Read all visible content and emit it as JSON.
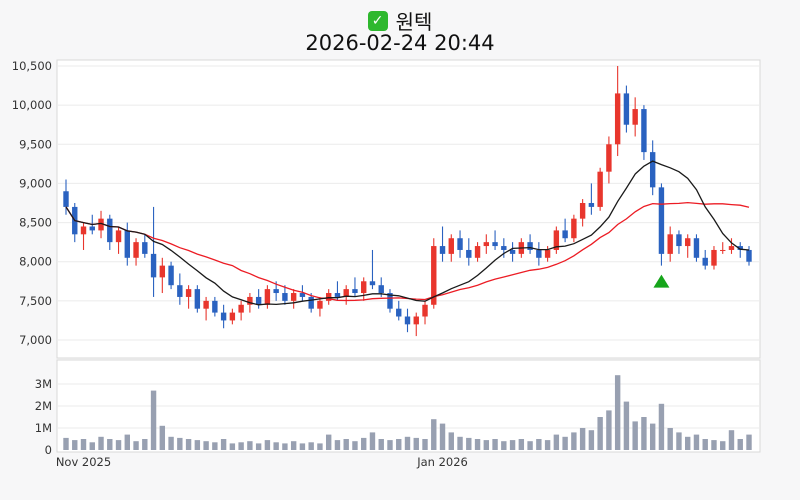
{
  "header": {
    "title": "원텍",
    "datetime": "2026-02-24 20:44"
  },
  "colors": {
    "background": "#f7f7f8",
    "panel_bg": "#ffffff",
    "panel_border": "#d8d8d8",
    "grid": "#ebebeb",
    "axis_text": "#333333",
    "up": "#e8362d",
    "down": "#2a62c0",
    "volume": "#98a0b1",
    "ma_fast": "#1a1a1a",
    "ma_slow": "#ec1c24",
    "marker": "#16a51b",
    "check_icon": "#2eb82e"
  },
  "chart_data": {
    "type": "candlestick",
    "title": "원텍",
    "subtitle": "2026-02-24 20:44",
    "price_axis": {
      "min": 7000,
      "max": 10500,
      "tick_values": [
        10500,
        10000,
        9500,
        9000,
        8500,
        8000,
        7500,
        7000
      ]
    },
    "volume_axis": {
      "unit": "millions",
      "ticks": [
        {
          "value": 3,
          "label": "3M"
        },
        {
          "value": 2,
          "label": "2M"
        },
        {
          "value": 1,
          "label": "1M"
        },
        {
          "value": 0,
          "label": "0"
        }
      ]
    },
    "x_ticks": [
      {
        "label": "Nov 2025",
        "index": 2
      },
      {
        "label": "Jan 2026",
        "index": 43
      }
    ],
    "moving_averages": [
      {
        "name": "fast-black",
        "window": 10,
        "color_key": "ma_fast"
      },
      {
        "name": "slow-red",
        "window": 20,
        "color_key": "ma_slow"
      }
    ],
    "marker": {
      "index": 68,
      "shape": "triangle-up",
      "color_key": "marker"
    },
    "candles_format": [
      "open",
      "high",
      "low",
      "close",
      "volume_millions"
    ],
    "candles": [
      [
        8900,
        9050,
        8600,
        8700,
        0.55
      ],
      [
        8700,
        8750,
        8250,
        8350,
        0.45
      ],
      [
        8350,
        8500,
        8150,
        8450,
        0.5
      ],
      [
        8450,
        8600,
        8350,
        8400,
        0.35
      ],
      [
        8400,
        8650,
        8300,
        8550,
        0.6
      ],
      [
        8550,
        8600,
        8150,
        8250,
        0.5
      ],
      [
        8250,
        8450,
        8100,
        8400,
        0.45
      ],
      [
        8400,
        8500,
        7950,
        8050,
        0.7
      ],
      [
        8050,
        8300,
        7950,
        8250,
        0.4
      ],
      [
        8250,
        8350,
        8050,
        8100,
        0.5
      ],
      [
        8100,
        8700,
        7550,
        7800,
        2.7
      ],
      [
        7800,
        8050,
        7600,
        7950,
        1.1
      ],
      [
        7950,
        8000,
        7650,
        7700,
        0.6
      ],
      [
        7700,
        7850,
        7450,
        7550,
        0.55
      ],
      [
        7550,
        7700,
        7400,
        7650,
        0.5
      ],
      [
        7650,
        7700,
        7350,
        7400,
        0.45
      ],
      [
        7400,
        7550,
        7250,
        7500,
        0.4
      ],
      [
        7500,
        7550,
        7300,
        7350,
        0.35
      ],
      [
        7350,
        7450,
        7150,
        7250,
        0.5
      ],
      [
        7250,
        7400,
        7200,
        7350,
        0.3
      ],
      [
        7350,
        7500,
        7250,
        7450,
        0.35
      ],
      [
        7450,
        7600,
        7350,
        7550,
        0.4
      ],
      [
        7550,
        7650,
        7400,
        7450,
        0.3
      ],
      [
        7450,
        7700,
        7400,
        7650,
        0.45
      ],
      [
        7650,
        7750,
        7500,
        7600,
        0.35
      ],
      [
        7600,
        7700,
        7450,
        7500,
        0.3
      ],
      [
        7500,
        7650,
        7400,
        7600,
        0.4
      ],
      [
        7600,
        7700,
        7500,
        7550,
        0.3
      ],
      [
        7550,
        7600,
        7350,
        7400,
        0.35
      ],
      [
        7400,
        7550,
        7300,
        7500,
        0.3
      ],
      [
        7500,
        7650,
        7450,
        7600,
        0.7
      ],
      [
        7600,
        7750,
        7500,
        7550,
        0.45
      ],
      [
        7550,
        7700,
        7450,
        7650,
        0.5
      ],
      [
        7650,
        7800,
        7550,
        7600,
        0.4
      ],
      [
        7600,
        7800,
        7500,
        7750,
        0.55
      ],
      [
        7750,
        8150,
        7650,
        7700,
        0.8
      ],
      [
        7700,
        7800,
        7550,
        7600,
        0.5
      ],
      [
        7600,
        7650,
        7350,
        7400,
        0.45
      ],
      [
        7400,
        7500,
        7250,
        7300,
        0.5
      ],
      [
        7300,
        7400,
        7100,
        7200,
        0.6
      ],
      [
        7200,
        7350,
        7050,
        7300,
        0.55
      ],
      [
        7300,
        7500,
        7200,
        7450,
        0.5
      ],
      [
        7450,
        8300,
        7400,
        8200,
        1.4
      ],
      [
        8200,
        8450,
        8000,
        8100,
        1.2
      ],
      [
        8100,
        8350,
        8000,
        8300,
        0.8
      ],
      [
        8300,
        8400,
        8050,
        8150,
        0.6
      ],
      [
        8150,
        8300,
        7950,
        8050,
        0.55
      ],
      [
        8050,
        8250,
        8000,
        8200,
        0.5
      ],
      [
        8200,
        8350,
        8100,
        8250,
        0.45
      ],
      [
        8250,
        8400,
        8150,
        8200,
        0.5
      ],
      [
        8200,
        8300,
        8050,
        8150,
        0.4
      ],
      [
        8150,
        8250,
        8000,
        8100,
        0.45
      ],
      [
        8100,
        8300,
        8050,
        8250,
        0.5
      ],
      [
        8250,
        8350,
        8100,
        8150,
        0.4
      ],
      [
        8150,
        8250,
        7950,
        8050,
        0.5
      ],
      [
        8050,
        8200,
        8000,
        8150,
        0.45
      ],
      [
        8150,
        8450,
        8100,
        8400,
        0.7
      ],
      [
        8400,
        8550,
        8250,
        8300,
        0.6
      ],
      [
        8300,
        8600,
        8250,
        8550,
        0.8
      ],
      [
        8550,
        8800,
        8450,
        8750,
        1.0
      ],
      [
        8750,
        9000,
        8600,
        8700,
        0.9
      ],
      [
        8700,
        9200,
        8650,
        9150,
        1.5
      ],
      [
        9150,
        9600,
        9000,
        9500,
        1.8
      ],
      [
        9500,
        10500,
        9350,
        10150,
        3.4
      ],
      [
        10150,
        10250,
        9650,
        9750,
        2.2
      ],
      [
        9750,
        10100,
        9600,
        9950,
        1.3
      ],
      [
        9950,
        10000,
        9300,
        9400,
        1.5
      ],
      [
        9400,
        9550,
        8850,
        8950,
        1.2
      ],
      [
        8950,
        9000,
        7950,
        8100,
        2.1
      ],
      [
        8100,
        8450,
        8000,
        8350,
        1.0
      ],
      [
        8350,
        8400,
        8100,
        8200,
        0.8
      ],
      [
        8200,
        8350,
        8050,
        8300,
        0.6
      ],
      [
        8300,
        8350,
        8000,
        8050,
        0.7
      ],
      [
        8050,
        8150,
        7900,
        7950,
        0.5
      ],
      [
        7950,
        8200,
        7900,
        8150,
        0.45
      ],
      [
        8150,
        8250,
        8100,
        8150,
        0.4
      ],
      [
        8150,
        8300,
        8100,
        8200,
        0.9
      ],
      [
        8200,
        8250,
        8050,
        8150,
        0.5
      ],
      [
        8150,
        8200,
        7950,
        8000,
        0.7
      ]
    ]
  }
}
